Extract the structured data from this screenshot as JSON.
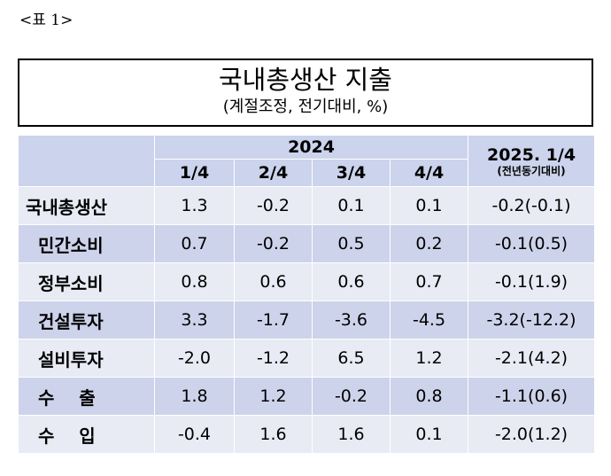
{
  "label": "<표 1>",
  "title": {
    "main": "국내총생산 지출",
    "sub": "(계절조정, 전기대비, %)"
  },
  "table": {
    "year_header": "2024",
    "quarters": [
      "1/4",
      "2/4",
      "3/4",
      "4/4"
    ],
    "last_col_header": "2025. 1/4",
    "last_col_sub": "(전년동기대비)",
    "rows": [
      {
        "label": "국내총생산",
        "values": [
          "1.3",
          "-0.2",
          "0.1",
          "0.1",
          "-0.2(-0.1)"
        ]
      },
      {
        "label": "민간소비",
        "values": [
          "0.7",
          "-0.2",
          "0.5",
          "0.2",
          "-0.1(0.5)"
        ]
      },
      {
        "label": "정부소비",
        "values": [
          "0.8",
          "0.6",
          "0.6",
          "0.7",
          "-0.1(1.9)"
        ]
      },
      {
        "label": "건설투자",
        "values": [
          "3.3",
          "-1.7",
          "-3.6",
          "-4.5",
          "-3.2(-12.2)"
        ]
      },
      {
        "label": "설비투자",
        "values": [
          "-2.0",
          "-1.2",
          "6.5",
          "1.2",
          "-2.1(4.2)"
        ]
      },
      {
        "label": "수    출",
        "values": [
          "1.8",
          "1.2",
          "-0.2",
          "0.8",
          "-1.1(0.6)"
        ]
      },
      {
        "label": "수    입",
        "values": [
          "-0.4",
          "1.6",
          "1.6",
          "0.1",
          "-2.0(1.2)"
        ]
      }
    ]
  }
}
